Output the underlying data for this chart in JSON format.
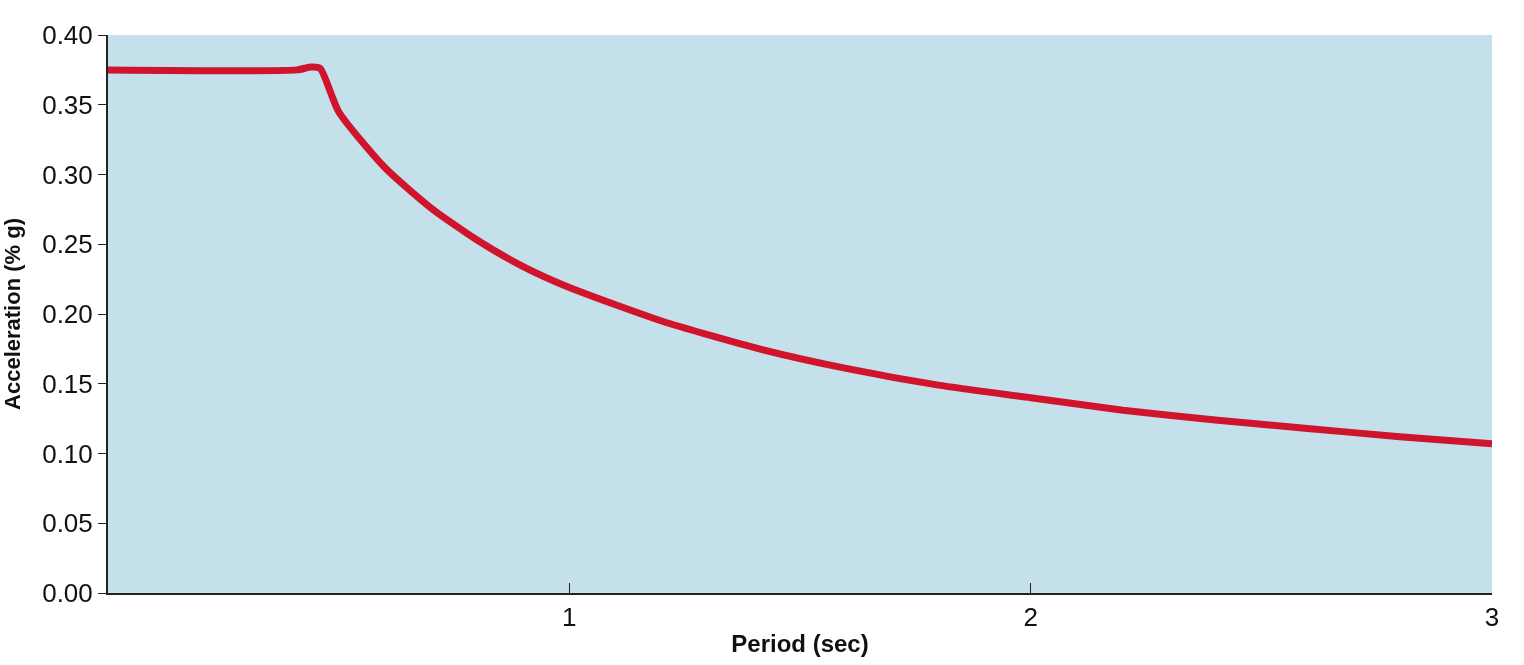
{
  "chart_data": {
    "type": "line",
    "xlabel": "Period (sec)",
    "ylabel": "Acceleration (% g)",
    "x": [
      0,
      0.41,
      0.44,
      0.46,
      0.5,
      0.6,
      0.7,
      0.8,
      0.9,
      1.0,
      1.2,
      1.4,
      1.6,
      1.8,
      2.0,
      2.2,
      2.4,
      2.6,
      2.8,
      3.0
    ],
    "series": [
      {
        "color": "#d0142c",
        "values": [
          0.375,
          0.375,
          0.377,
          0.376,
          0.345,
          0.305,
          0.276,
          0.253,
          0.234,
          0.219,
          0.195,
          0.176,
          0.161,
          0.149,
          0.14,
          0.131,
          0.124,
          0.118,
          0.112,
          0.107
        ]
      }
    ],
    "xlim": [
      0,
      3
    ],
    "xticks": [
      1,
      2,
      3
    ],
    "ylim": [
      0,
      0.4
    ],
    "yticks": [
      {
        "value": 0,
        "label": "0.00"
      },
      {
        "value": 0.05,
        "label": "0.05"
      },
      {
        "value": 0.1,
        "label": "0.10"
      },
      {
        "value": 0.15,
        "label": "0.15"
      },
      {
        "value": 0.2,
        "label": "0.20"
      },
      {
        "value": 0.25,
        "label": "0.25"
      },
      {
        "value": 0.3,
        "label": "0.30"
      },
      {
        "value": 0.35,
        "label": "0.35"
      },
      {
        "value": 0.4,
        "label": "0.40"
      }
    ],
    "grid": false,
    "legend": false,
    "marker": "none",
    "line_style": "solid"
  }
}
